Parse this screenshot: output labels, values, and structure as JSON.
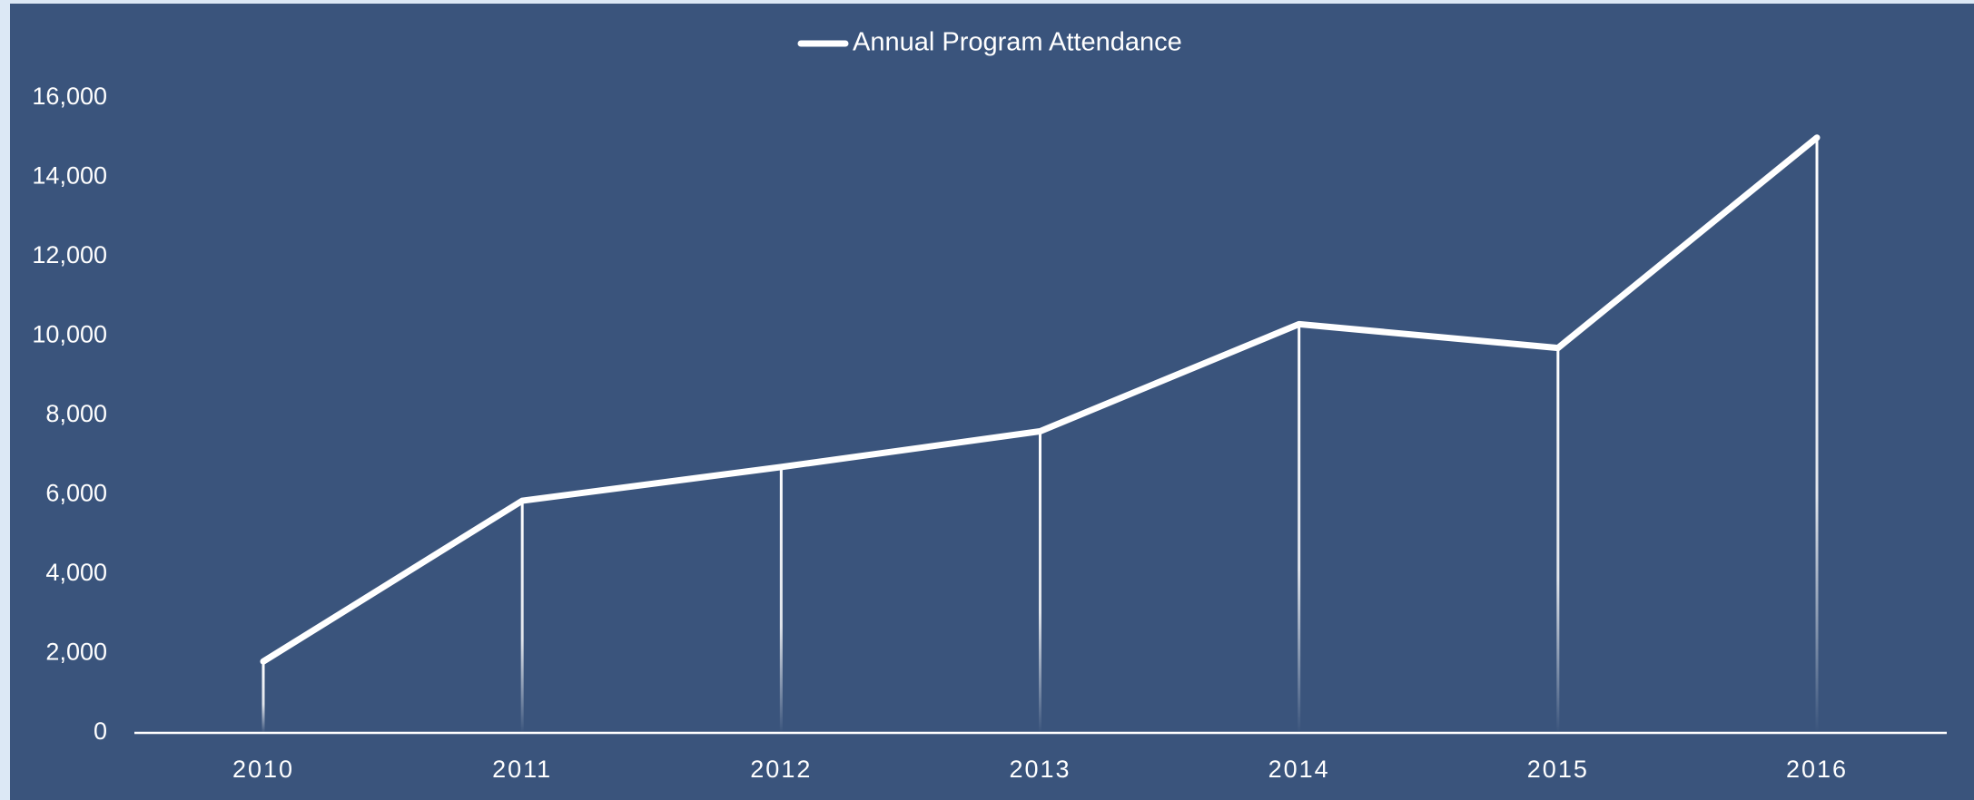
{
  "chart_data": {
    "type": "line",
    "categories": [
      "2010",
      "2011",
      "2012",
      "2013",
      "2014",
      "2015",
      "2016"
    ],
    "series": [
      {
        "name": "Annual Program Attendance",
        "color": "#ffffff",
        "values": [
          1800,
          5850,
          6700,
          7600,
          10300,
          9700,
          15000
        ]
      }
    ],
    "ylim": [
      0,
      16000
    ],
    "yticks": [
      0,
      {
        "value": 2000,
        "label": "2,000"
      },
      {
        "value": 4000,
        "label": "4,000"
      },
      {
        "value": 6000,
        "label": "6,000"
      },
      {
        "value": 8000,
        "label": "8,000"
      },
      {
        "value": 10000,
        "label": "10,000"
      },
      {
        "value": 12000,
        "label": "12,000"
      },
      {
        "value": 14000,
        "label": "14,000"
      },
      {
        "value": 16000,
        "label": "16,000"
      }
    ],
    "grid": false,
    "legend": "top"
  }
}
